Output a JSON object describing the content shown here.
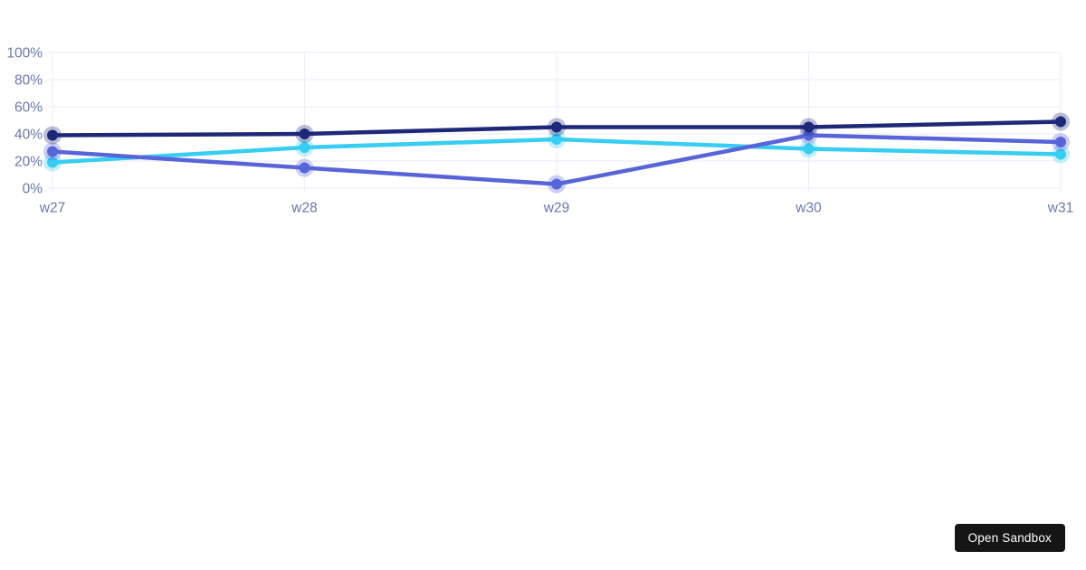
{
  "chart_data": {
    "type": "line",
    "categories": [
      "w27",
      "w28",
      "w29",
      "w30",
      "w31"
    ],
    "series": [
      {
        "name": "dark-navy-series",
        "color": "#1e2878",
        "values": [
          39,
          40,
          45,
          45,
          49
        ]
      },
      {
        "name": "indigo-series",
        "color": "#5865d9",
        "values": [
          27,
          15,
          3,
          39,
          34
        ]
      },
      {
        "name": "cyan-series",
        "color": "#38cdf2",
        "values": [
          19,
          30,
          36,
          29,
          25
        ]
      }
    ],
    "title": "",
    "xlabel": "",
    "ylabel": "",
    "ylim": [
      0,
      100
    ],
    "y_ticks": [
      {
        "label": "100%",
        "value": 100
      },
      {
        "label": "80%",
        "value": 80
      },
      {
        "label": "60%",
        "value": 60
      },
      {
        "label": "40%",
        "value": 40
      },
      {
        "label": "20%",
        "value": 20
      },
      {
        "label": "0%",
        "value": 0
      }
    ],
    "grid": true,
    "legend": "none",
    "point_style": "circle-with-halo",
    "colors": {
      "grid": "#eeeef6",
      "axis_labels": "#6b77ad",
      "background": "#ffffff"
    }
  },
  "overlay": {
    "open_sandbox_label": "Open Sandbox",
    "button_bg": "#151515",
    "button_text_color": "#ffffff"
  }
}
